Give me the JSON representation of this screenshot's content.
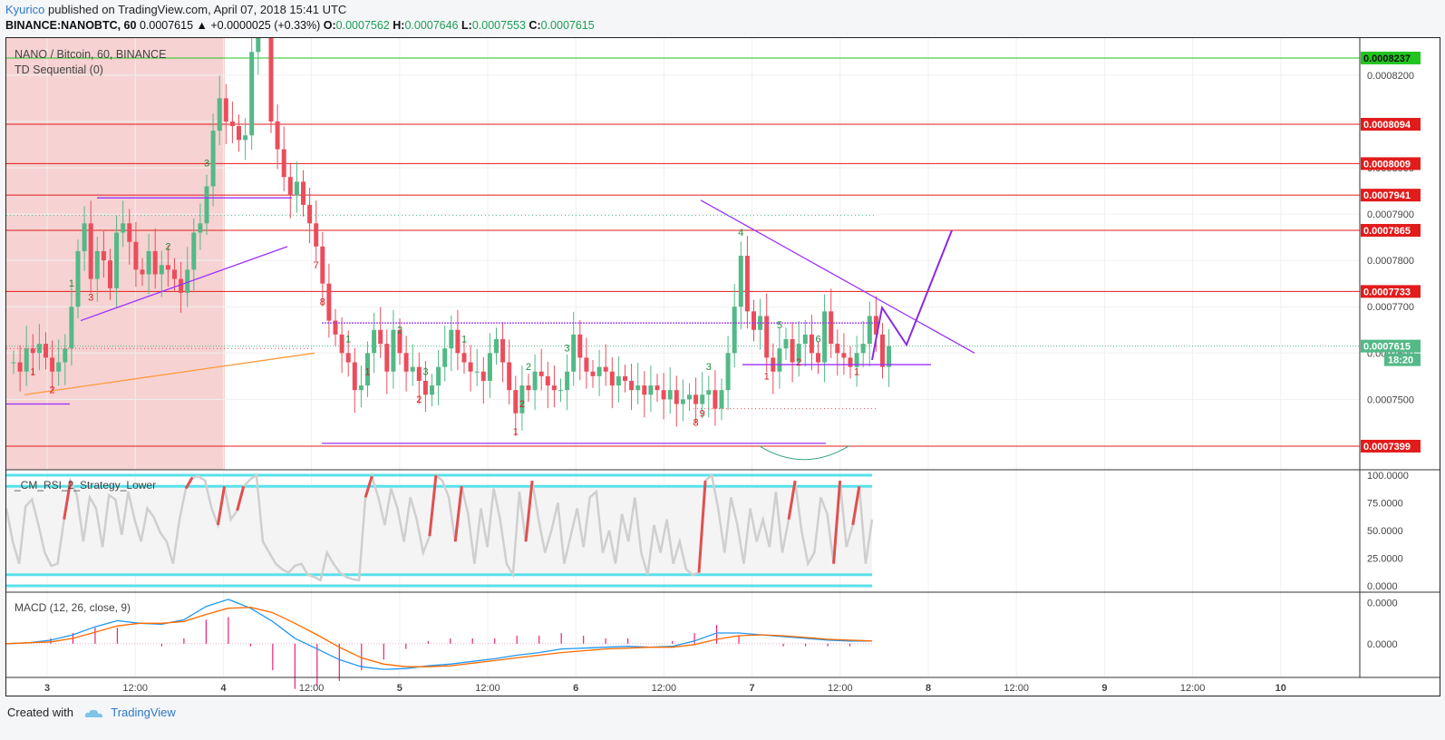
{
  "header": {
    "author": "Kyurico",
    "published": "published on TradingView.com, April 07, 2018 15:41 UTC"
  },
  "symbol_line": {
    "symbol": "BINANCE:NANOBTC, 60",
    "last": "0.0007615",
    "change": "▲ +0.0000025 (+0.33%)",
    "o_label": "O:",
    "o": "0.0007562",
    "h_label": "H:",
    "h": "0.0007646",
    "l_label": "L:",
    "l": "0.0007553",
    "c_label": "C:",
    "c": "0.0007615"
  },
  "legend": {
    "main": "NANO / Bitcoin, 60, BINANCE",
    "indicator": "TD Sequential (0)",
    "rsi": "_CM_RSI_2_Strategy_Lower",
    "macd": "MACD (12, 26, close, 9)"
  },
  "footer": {
    "created": "Created with",
    "brand": "TradingView"
  },
  "colors": {
    "up": "#53b987",
    "down": "#eb4d5c",
    "level": "#e21b1b",
    "trend": "#9b30ff",
    "rsi_band": "#58e1ea",
    "macd": "#2196f3",
    "signal": "#ff6a00"
  },
  "chart_data": [
    {
      "type": "candlestick",
      "title": "NANO / Bitcoin, 60, BINANCE",
      "ylim": [
        0.000735,
        0.000828
      ],
      "x_ticks": [
        "3",
        "12:00",
        "4",
        "12:00",
        "5",
        "12:00",
        "6",
        "12:00",
        "7",
        "12:00",
        "8",
        "12:00",
        "9",
        "12:00",
        "10"
      ],
      "y_ticks": [
        "0.0008200",
        "0.0008100",
        "0.0008000",
        "0.0007900",
        "0.0007800",
        "0.0007700",
        "0.0007600",
        "0.0007500"
      ],
      "levels": [
        {
          "price": 0.0008237,
          "label": "0.0008237",
          "color": "#22c41f"
        },
        {
          "price": 0.0008094,
          "label": "0.0008094",
          "color": "#e21b1b"
        },
        {
          "price": 0.0008009,
          "label": "0.0008009",
          "color": "#e21b1b"
        },
        {
          "price": 0.0007941,
          "label": "0.0007941",
          "color": "#e21b1b"
        },
        {
          "price": 0.0007865,
          "label": "0.0007865",
          "color": "#e21b1b"
        },
        {
          "price": 0.0007733,
          "label": "0.0007733",
          "color": "#e21b1b"
        },
        {
          "price": 0.0007399,
          "label": "0.0007399",
          "color": "#e21b1b"
        }
      ],
      "last_price": {
        "price": 0.0007615,
        "label": "0.0007615",
        "countdown": "18:20"
      },
      "candles_close": [
        0.000758,
        0.000756,
        0.000761,
        0.00076,
        0.000762,
        0.000759,
        0.000756,
        0.000758,
        0.000761,
        0.00077,
        0.000782,
        0.000788,
        0.000776,
        0.000782,
        0.00078,
        0.000774,
        0.000786,
        0.000788,
        0.000784,
        0.000778,
        0.000777,
        0.000782,
        0.000777,
        0.000779,
        0.000778,
        0.000776,
        0.000773,
        0.000778,
        0.000786,
        0.000788,
        0.000796,
        0.000808,
        0.000815,
        0.00081,
        0.000809,
        0.000806,
        0.000807,
        0.000825,
        0.000835,
        0.000833,
        0.00081,
        0.000804,
        0.000798,
        0.000794,
        0.000797,
        0.000792,
        0.000788,
        0.000783,
        0.000775,
        0.000767,
        0.000764,
        0.00076,
        0.000758,
        0.000752,
        0.000753,
        0.00076,
        0.000765,
        0.000762,
        0.000756,
        0.000765,
        0.00076,
        0.000756,
        0.000757,
        0.000754,
        0.000751,
        0.000753,
        0.000757,
        0.000761,
        0.000765,
        0.00076,
        0.000758,
        0.000756,
        0.000756,
        0.000754,
        0.00076,
        0.000763,
        0.000758,
        0.000752,
        0.000747,
        0.000753,
        0.000752,
        0.000756,
        0.000755,
        0.000753,
        0.000752,
        0.000752,
        0.000756,
        0.000764,
        0.000759,
        0.000756,
        0.000755,
        0.000757,
        0.000756,
        0.000753,
        0.000755,
        0.000754,
        0.000752,
        0.000753,
        0.000751,
        0.000753,
        0.000752,
        0.00075,
        0.000752,
        0.000749,
        0.00075,
        0.000751,
        0.000749,
        0.000751,
        0.000752,
        0.000748,
        0.000752,
        0.00076,
        0.00077,
        0.000781,
        0.000769,
        0.000765,
        0.000768,
        0.000759,
        0.000756,
        0.000761,
        0.000763,
        0.000758,
        0.000762,
        0.000764,
        0.00076,
        0.000758,
        0.000769,
        0.000762,
        0.00076,
        0.000759,
        0.000757,
        0.00076,
        0.000762,
        0.000768,
        0.000764,
        0.000757,
        0.0007615
      ],
      "td_sequential": "green setup counts 1–9 above candles, red counts below candles",
      "annotations": [
        "descending trendline from 0.0007930 to 0.0007600",
        "support line near 0.0007575",
        "projected arrow path up to 0.0007865"
      ]
    },
    {
      "type": "line",
      "title": "_CM_RSI_2_Strategy_Lower",
      "ylim": [
        0,
        100
      ],
      "y_ticks": [
        "100.0000",
        "75.0000",
        "50.0000",
        "25.0000",
        "0.0000"
      ],
      "bands": [
        100,
        90,
        10,
        0
      ],
      "values": [
        70,
        40,
        20,
        72,
        78,
        55,
        30,
        18,
        20,
        60,
        95,
        82,
        40,
        80,
        70,
        35,
        82,
        78,
        46,
        85,
        60,
        40,
        70,
        62,
        48,
        40,
        20,
        60,
        88,
        98,
        99,
        95,
        70,
        55,
        90,
        60,
        68,
        90,
        96,
        100,
        40,
        30,
        20,
        15,
        12,
        18,
        20,
        10,
        8,
        5,
        30,
        20,
        12,
        8,
        6,
        5,
        80,
        99,
        80,
        55,
        88,
        70,
        40,
        80,
        60,
        30,
        45,
        100,
        95,
        80,
        40,
        90,
        65,
        20,
        70,
        35,
        88,
        60,
        20,
        10,
        85,
        40,
        95,
        60,
        30,
        50,
        75,
        20,
        45,
        70,
        35,
        80,
        85,
        30,
        50,
        20,
        65,
        40,
        80,
        30,
        10,
        55,
        30,
        60,
        20,
        40,
        15,
        10,
        12,
        95,
        100,
        70,
        30,
        80,
        55,
        20,
        70,
        40,
        60,
        35,
        85,
        30,
        60,
        95,
        50,
        20,
        30,
        80,
        65,
        20,
        95,
        35,
        55,
        90,
        20,
        60
      ],
      "overbought_marks": "red segments where RSI exceeds 90"
    },
    {
      "type": "line",
      "title": "MACD (12, 26, close, 9)",
      "y_ticks": [
        "0.0000",
        "0.0000"
      ],
      "series": [
        {
          "name": "MACD",
          "color": "#2196f3",
          "values": [
            0.0,
            0.1,
            0.4,
            1.0,
            1.9,
            2.6,
            2.3,
            2.2,
            2.7,
            4.2,
            5.0,
            4.0,
            2.5,
            0.6,
            -0.6,
            -1.8,
            -2.6,
            -2.9,
            -2.8,
            -2.5,
            -2.3,
            -2.0,
            -1.7,
            -1.3,
            -1.0,
            -0.6,
            -0.5,
            -0.4,
            -0.3,
            -0.4,
            -0.3,
            0.3,
            1.2,
            1.2,
            1.0,
            0.8,
            0.6,
            0.4,
            0.3,
            0.3
          ]
        },
        {
          "name": "Signal",
          "color": "#ff6a00",
          "values": [
            0.0,
            0.1,
            0.2,
            0.6,
            1.3,
            2.0,
            2.3,
            2.3,
            2.5,
            3.3,
            4.0,
            4.1,
            3.5,
            2.3,
            1.0,
            -0.4,
            -1.6,
            -2.3,
            -2.6,
            -2.6,
            -2.5,
            -2.2,
            -1.9,
            -1.6,
            -1.3,
            -1.0,
            -0.8,
            -0.6,
            -0.5,
            -0.4,
            -0.4,
            -0.1,
            0.5,
            0.9,
            1.0,
            0.9,
            0.7,
            0.5,
            0.4,
            0.3
          ]
        }
      ]
    }
  ]
}
